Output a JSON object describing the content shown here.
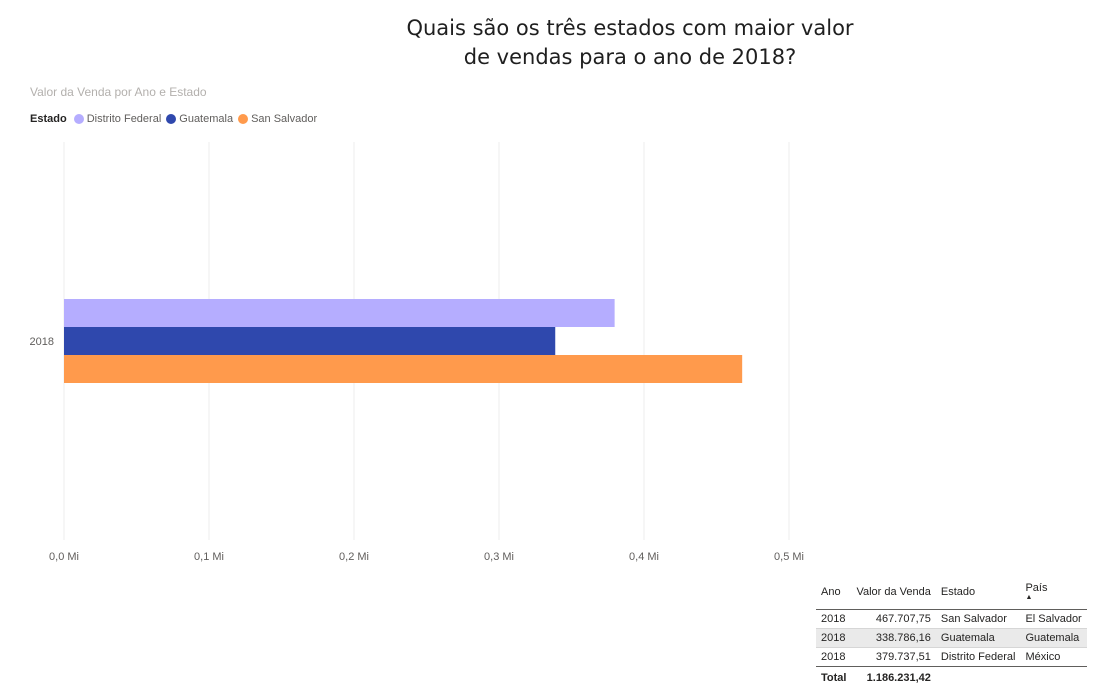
{
  "page": {
    "question_lines": [
      "Quais são os três estados com maior valor",
      "de vendas para o ano de 2018?"
    ]
  },
  "chart_data": {
    "type": "bar",
    "orientation": "horizontal",
    "title": "Valor da Venda por Ano e Estado",
    "legend_title": "Estado",
    "legend_position": "top-left",
    "categories": [
      "2018"
    ],
    "series": [
      {
        "name": "Distrito Federal",
        "color": "#b5adff",
        "values": [
          379737.51
        ]
      },
      {
        "name": "Guatemala",
        "color": "#2f48ad",
        "values": [
          338786.16
        ]
      },
      {
        "name": "San Salvador",
        "color": "#ff9a4c",
        "values": [
          467707.75
        ]
      }
    ],
    "xlim": [
      0,
      500000
    ],
    "xticks": [
      {
        "value": 0,
        "label": "0,0 Mi"
      },
      {
        "value": 100000,
        "label": "0,1 Mi"
      },
      {
        "value": 200000,
        "label": "0,2 Mi"
      },
      {
        "value": 300000,
        "label": "0,3 Mi"
      },
      {
        "value": 400000,
        "label": "0,4 Mi"
      },
      {
        "value": 500000,
        "label": "0,5 Mi"
      }
    ],
    "grid": true
  },
  "table": {
    "headers": [
      "Ano",
      "Valor da Venda",
      "Estado",
      "País"
    ],
    "sorted_column": "País",
    "rows": [
      [
        "2018",
        "467.707,75",
        "San Salvador",
        "El Salvador"
      ],
      [
        "2018",
        "338.786,16",
        "Guatemala",
        "Guatemala"
      ],
      [
        "2018",
        "379.737,51",
        "Distrito Federal",
        "México"
      ]
    ],
    "total_label": "Total",
    "total_value": "1.186.231,42"
  }
}
